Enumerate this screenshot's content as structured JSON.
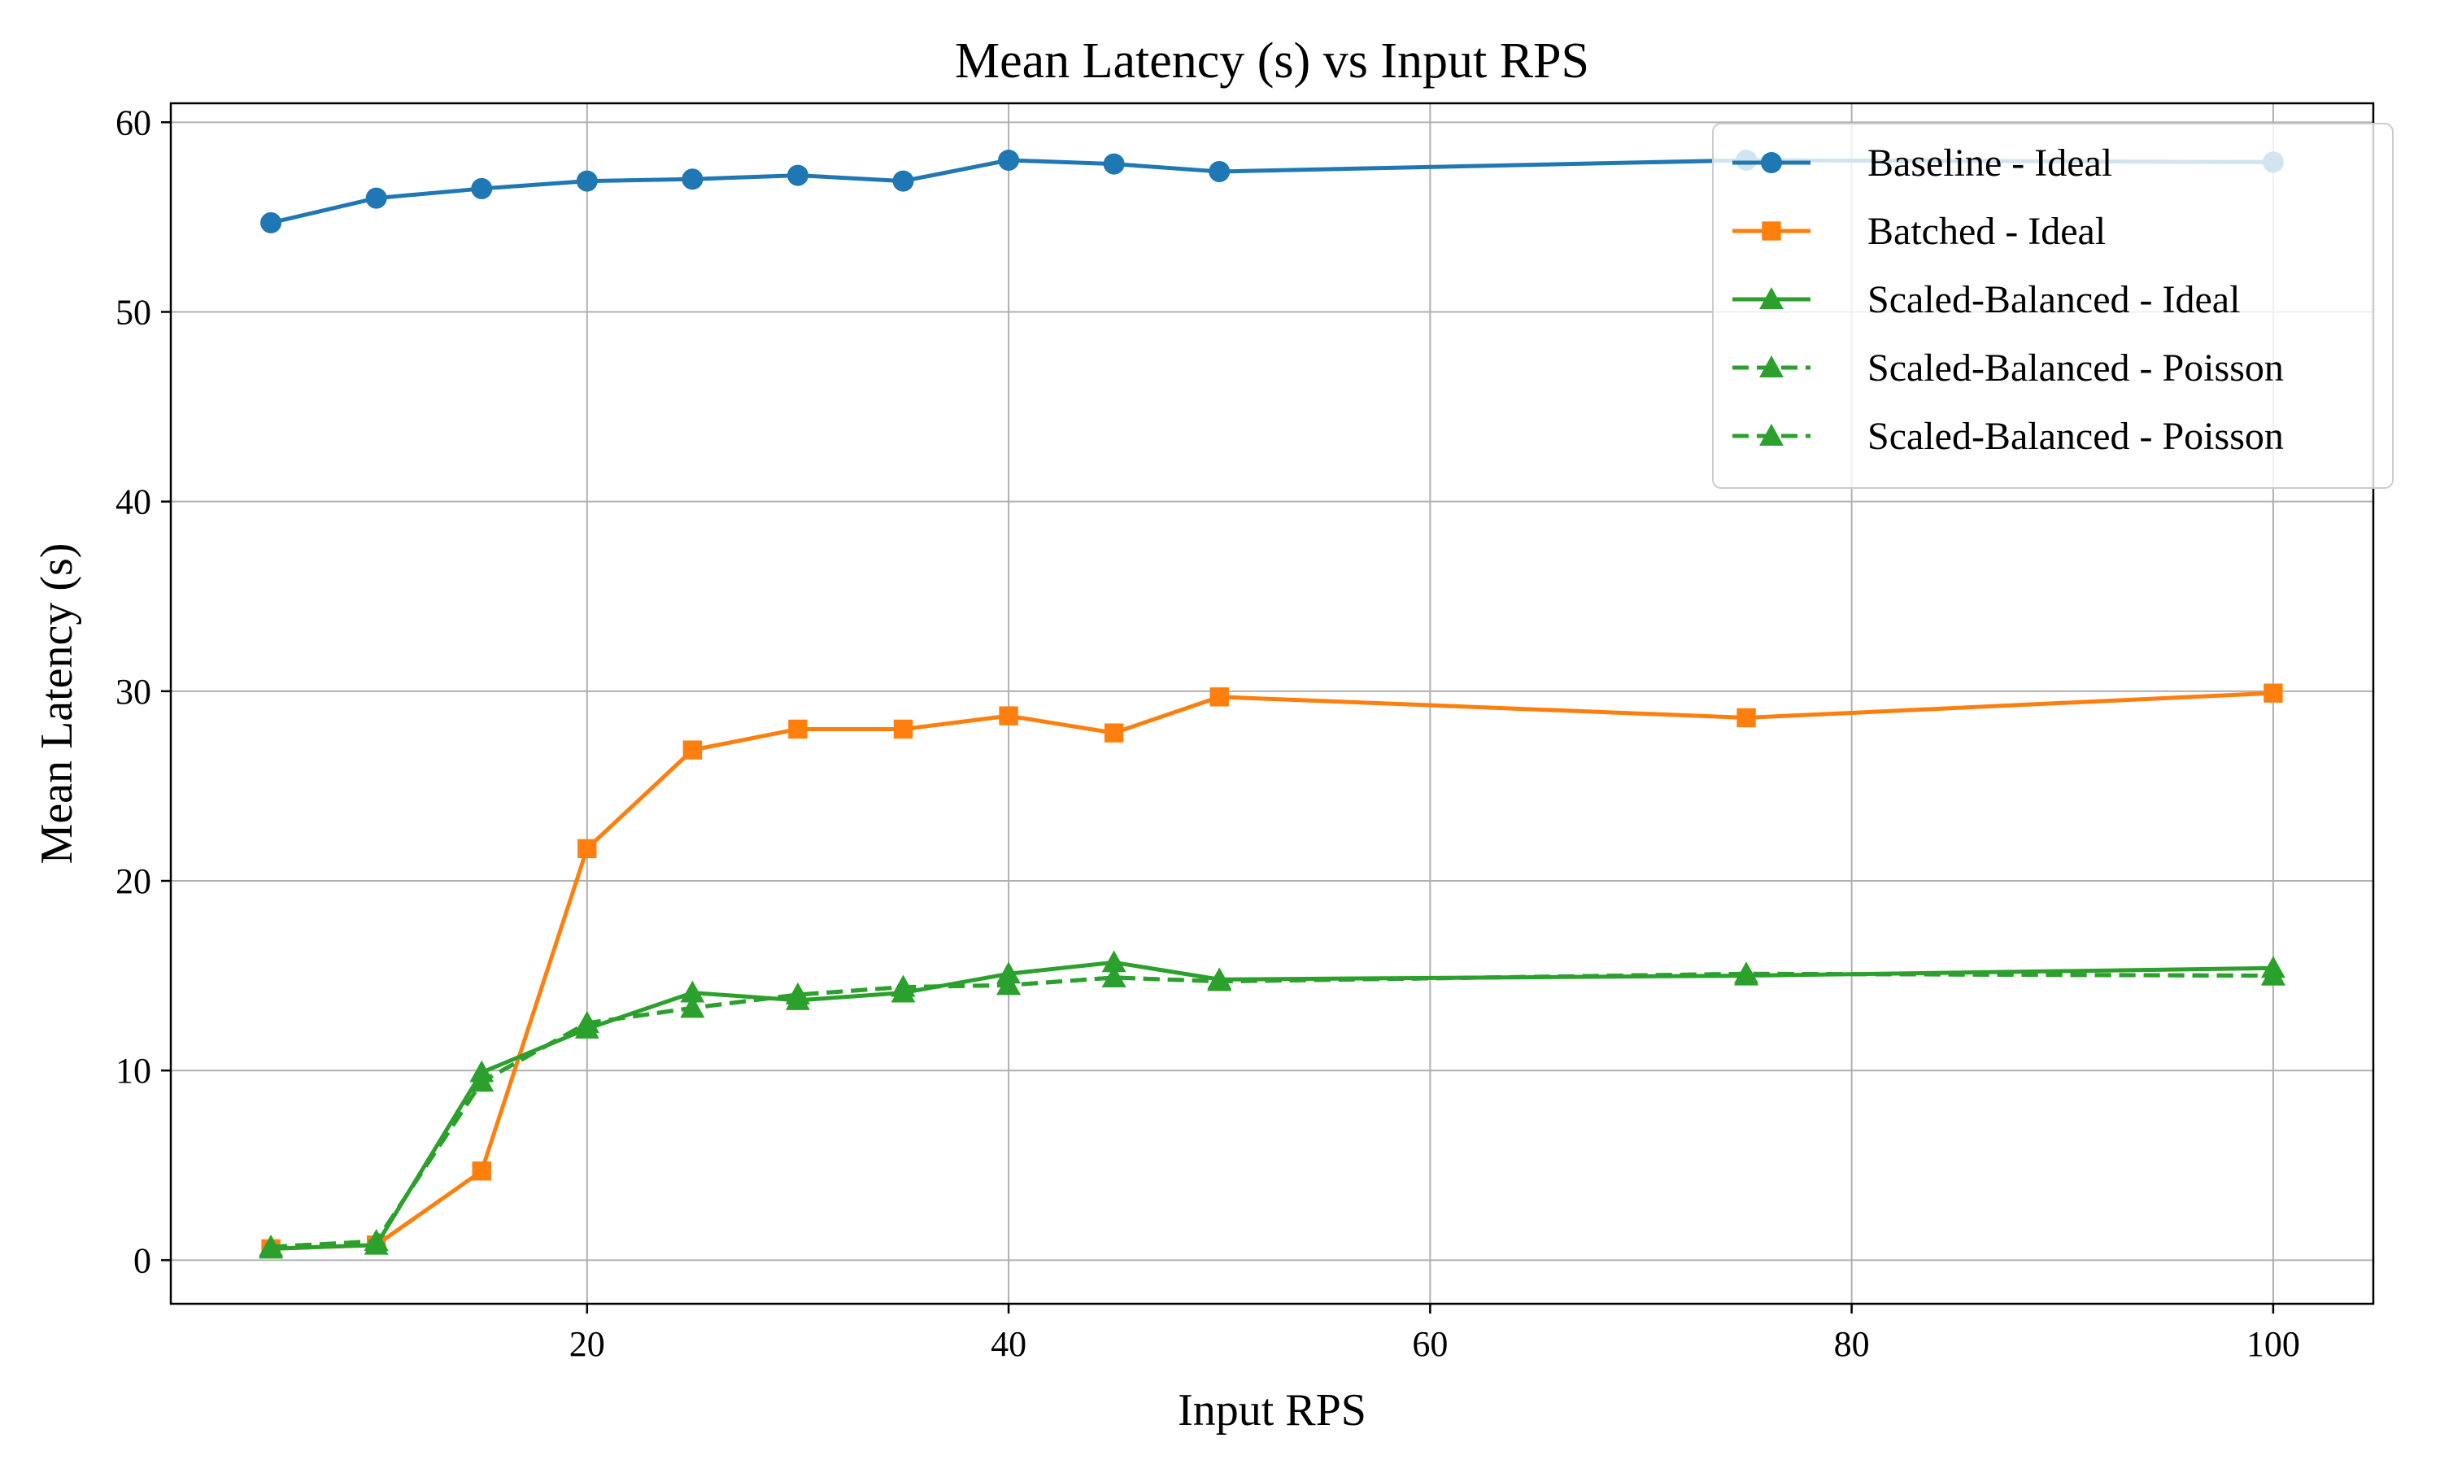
{
  "chart_data": {
    "type": "line",
    "title": "Mean Latency (s) vs Input RPS",
    "xlabel": "Input RPS",
    "ylabel": "Mean Latency (s)",
    "xlim": [
      0.25,
      104.75
    ],
    "ylim": [
      -2.3,
      61.0
    ],
    "xticks": [
      20,
      40,
      60,
      80,
      100
    ],
    "yticks": [
      0,
      10,
      20,
      30,
      40,
      50,
      60
    ],
    "grid": true,
    "legend_position": "top-right",
    "series": [
      {
        "name": "Baseline - Ideal",
        "color": "#1f77b4",
        "marker": "circle",
        "line_style": "solid",
        "x": [
          5,
          10,
          15,
          20,
          25,
          30,
          35,
          40,
          45,
          50,
          75,
          100
        ],
        "y": [
          54.7,
          56.0,
          56.5,
          56.9,
          57.0,
          57.2,
          56.9,
          58.0,
          57.8,
          57.4,
          58.0,
          57.9
        ]
      },
      {
        "name": "Batched - Ideal",
        "color": "#ff7f0e",
        "marker": "square",
        "line_style": "solid",
        "x": [
          5,
          10,
          15,
          20,
          25,
          30,
          35,
          40,
          45,
          50,
          75,
          100
        ],
        "y": [
          0.6,
          0.8,
          4.7,
          21.7,
          26.9,
          28.0,
          28.0,
          28.7,
          27.8,
          29.7,
          28.6,
          29.9
        ]
      },
      {
        "name": "Scaled-Balanced - Ideal",
        "color": "#2ca02c",
        "marker": "triangle",
        "line_style": "solid",
        "x": [
          5,
          10,
          15,
          20,
          25,
          30,
          35,
          40,
          45,
          50,
          75,
          100
        ],
        "y": [
          0.6,
          0.8,
          9.9,
          12.2,
          14.1,
          13.7,
          14.1,
          15.1,
          15.7,
          14.8,
          15.0,
          15.4
        ]
      },
      {
        "name": "Scaled-Balanced - Poisson",
        "color": "#2ca02c",
        "marker": "triangle",
        "line_style": "dashed",
        "x": [
          5,
          10,
          15,
          20,
          25,
          30,
          35,
          40,
          45,
          50,
          75,
          100
        ],
        "y": [
          0.7,
          1.0,
          9.4,
          12.5,
          13.3,
          14.0,
          14.4,
          14.5,
          14.9,
          14.7,
          15.1,
          15.0
        ]
      },
      {
        "name": "Scaled-Balanced - Poisson",
        "color": "#2ca02c",
        "marker": "triangle",
        "line_style": "dashed",
        "x": [
          5,
          10,
          15,
          20,
          25,
          30,
          35,
          40,
          45,
          50,
          75,
          100
        ],
        "y": [
          0.7,
          1.0,
          9.4,
          12.5,
          13.3,
          14.0,
          14.4,
          14.5,
          14.9,
          14.7,
          15.1,
          15.0
        ]
      }
    ]
  }
}
